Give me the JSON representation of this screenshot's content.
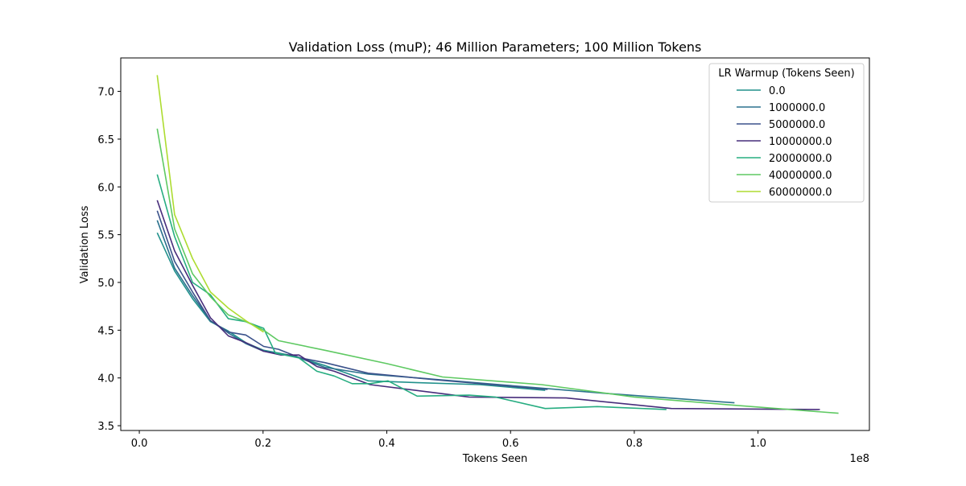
{
  "chart_data": {
    "type": "line",
    "title": "Validation Loss (muP); 46 Million Parameters; 100 Million Tokens",
    "xlabel": "Tokens Seen",
    "ylabel": "Validation Loss",
    "x_offset_label": "1e8",
    "xlim": [
      -3000000,
      118000000
    ],
    "ylim": [
      3.45,
      7.35
    ],
    "x_ticks": [
      0,
      20000000,
      40000000,
      60000000,
      80000000,
      100000000
    ],
    "x_tick_labels": [
      "0.0",
      "0.2",
      "0.4",
      "0.6",
      "0.8",
      "1.0"
    ],
    "y_ticks": [
      3.5,
      4.0,
      4.5,
      5.0,
      5.5,
      6.0,
      6.5,
      7.0
    ],
    "y_tick_labels": [
      "3.5",
      "4.0",
      "4.5",
      "5.0",
      "5.5",
      "6.0",
      "6.5",
      "7.0"
    ],
    "grid": false,
    "legend": {
      "title": "LR Warmup (Tokens Seen)",
      "placement": "top-right"
    },
    "series": [
      {
        "name": "0.0",
        "color": "#21918c",
        "x": [
          2900000,
          5700000,
          8600000,
          11500000,
          14400000,
          17200000,
          20100000,
          25000000,
          30000000,
          37000000,
          45000000,
          55000000,
          65600000
        ],
        "y": [
          5.52,
          5.12,
          4.83,
          4.59,
          4.49,
          4.37,
          4.29,
          4.23,
          4.13,
          3.97,
          3.95,
          3.93,
          3.87
        ]
      },
      {
        "name": "1000000.0",
        "color": "#2c728e",
        "x": [
          2900000,
          5700000,
          8600000,
          11500000,
          14400000,
          17200000,
          20100000,
          25000000,
          30000000,
          37000000,
          45000000,
          60000000,
          75000000,
          96200000
        ],
        "y": [
          5.65,
          5.15,
          4.86,
          4.6,
          4.47,
          4.36,
          4.28,
          4.23,
          4.11,
          4.04,
          4.0,
          3.92,
          3.84,
          3.74
        ]
      },
      {
        "name": "5000000.0",
        "color": "#3b528b",
        "x": [
          2900000,
          5700000,
          8600000,
          11500000,
          14400000,
          17200000,
          20100000,
          22500000,
          26000000,
          30000000,
          37000000,
          48000000,
          66000000
        ],
        "y": [
          5.75,
          5.22,
          4.9,
          4.6,
          4.48,
          4.45,
          4.33,
          4.3,
          4.21,
          4.16,
          4.05,
          3.98,
          3.88
        ]
      },
      {
        "name": "10000000.0",
        "color": "#472d7b",
        "x": [
          2900000,
          5700000,
          8600000,
          11500000,
          14400000,
          17200000,
          20100000,
          22900000,
          25800000,
          28700000,
          31500000,
          37300000,
          53300000,
          69000000,
          86000000,
          110000000
        ],
        "y": [
          5.86,
          5.33,
          4.97,
          4.63,
          4.44,
          4.37,
          4.28,
          4.24,
          4.24,
          4.12,
          4.07,
          3.93,
          3.8,
          3.79,
          3.68,
          3.67
        ]
      },
      {
        "name": "20000000.0",
        "color": "#27ad81",
        "x": [
          2900000,
          5700000,
          8600000,
          11500000,
          14400000,
          17200000,
          20100000,
          22000000,
          25800000,
          28700000,
          31500000,
          34400000,
          37300000,
          40200000,
          44900000,
          53300000,
          57500000,
          65600000,
          74000000,
          85200000
        ],
        "y": [
          6.13,
          5.48,
          5.0,
          4.87,
          4.62,
          4.59,
          4.52,
          4.26,
          4.21,
          4.07,
          4.02,
          3.94,
          3.94,
          3.97,
          3.81,
          3.82,
          3.8,
          3.68,
          3.7,
          3.67
        ]
      },
      {
        "name": "40000000.0",
        "color": "#5ec962",
        "x": [
          2900000,
          5700000,
          8600000,
          11500000,
          14400000,
          17200000,
          20100000,
          22500000,
          30000000,
          40000000,
          49000000,
          65000000,
          80000000,
          95000000,
          113000000
        ],
        "y": [
          6.61,
          5.56,
          5.09,
          4.85,
          4.66,
          4.59,
          4.5,
          4.39,
          4.29,
          4.15,
          4.01,
          3.93,
          3.8,
          3.72,
          3.63
        ]
      },
      {
        "name": "60000000.0",
        "color": "#addc30",
        "x": [
          2900000,
          5700000,
          8600000,
          11500000,
          14400000,
          17200000,
          20100000
        ],
        "y": [
          7.17,
          5.71,
          5.25,
          4.9,
          4.73,
          4.6,
          4.48
        ]
      }
    ]
  }
}
